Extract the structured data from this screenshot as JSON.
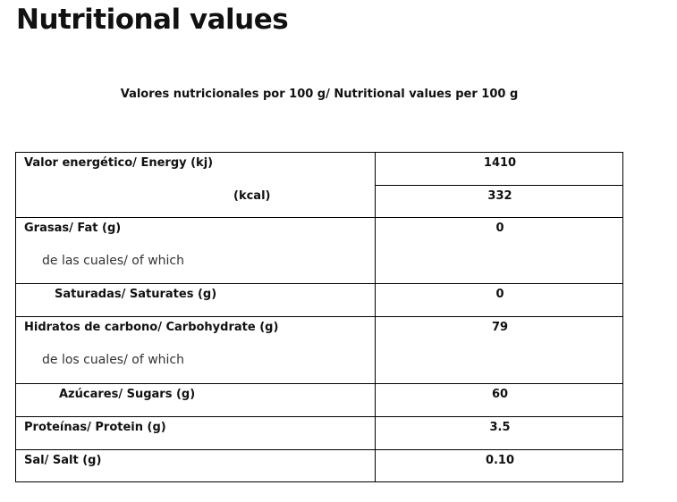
{
  "title": "Nutritional values",
  "subtitle": "Valores nutricionales por 100 g/ Nutritional values per 100 g",
  "rows": [
    {
      "label": "Valor energético/ Energy  (kj)",
      "value": "1410"
    },
    {
      "label": "(kcal)",
      "value": "332"
    },
    {
      "label": "Grasas/ Fat (g)",
      "value": "0"
    },
    {
      "label": "de las cuales/ of which"
    },
    {
      "label": "Saturadas/ Saturates (g)",
      "value": "0"
    },
    {
      "label": "Hidratos de carbono/ Carbohydrate (g)",
      "value": "79"
    },
    {
      "label": "de los cuales/ of which"
    },
    {
      "label": "Azúcares/ Sugars (g)",
      "value": "60"
    },
    {
      "label": "Proteínas/ Protein (g)",
      "value": "3.5"
    },
    {
      "label": "Sal/ Salt (g)",
      "value": "0.10"
    }
  ]
}
